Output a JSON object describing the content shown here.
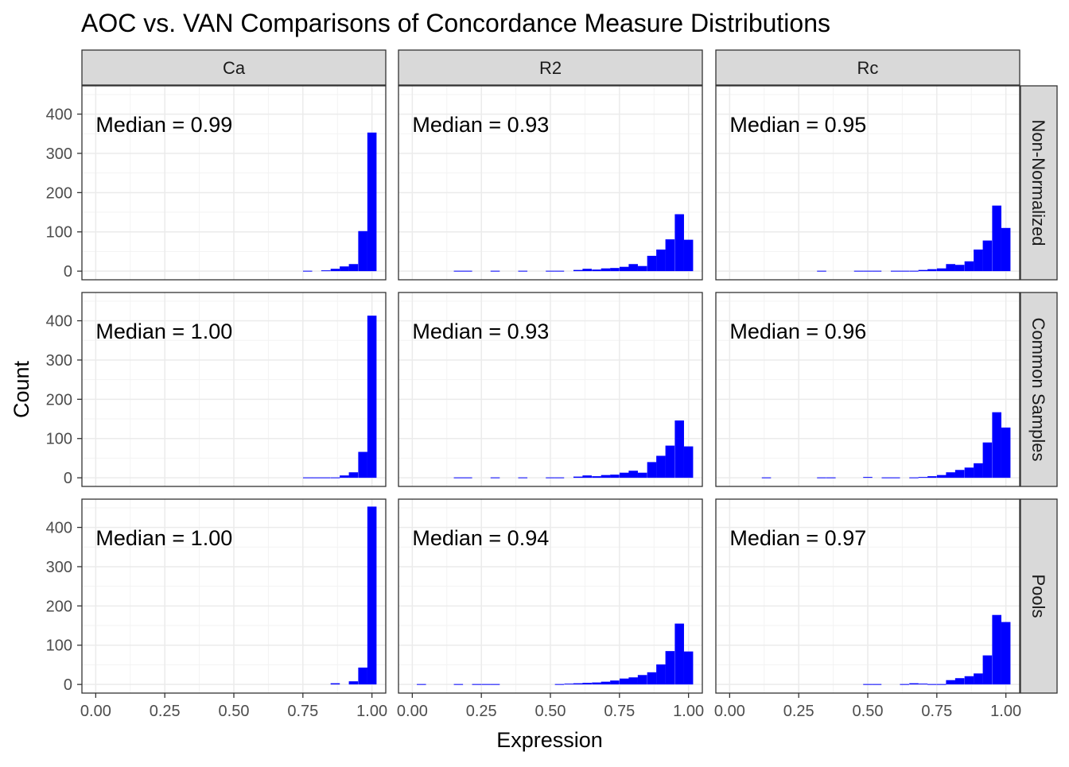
{
  "title": "AOC vs. VAN Comparisons of Concordance Measure Distributions",
  "xlabel": "Expression",
  "ylabel": "Count",
  "columns": [
    "Ca",
    "R2",
    "Rc"
  ],
  "rows": [
    "Non-Normalized",
    "Common Samples",
    "Pools"
  ],
  "x_ticks": [
    "0.00",
    "0.25",
    "0.50",
    "0.75",
    "1.00"
  ],
  "y_ticks": [
    "0",
    "100",
    "200",
    "300",
    "400"
  ],
  "colors": {
    "bars": "#0000ff",
    "strip_bg": "#d9d9d9",
    "grid": "#ebebeb"
  },
  "chart_data": {
    "type": "bar",
    "subtype": "faceted-histogram",
    "xlim": [
      -0.05,
      1.05
    ],
    "ylim": [
      -22,
      472
    ],
    "bin_width": 0.0333,
    "grid": true,
    "panels": [
      {
        "column": "Ca",
        "row": "Non-Normalized",
        "annotation": "Median = 0.99",
        "bars": [
          {
            "x": 0.767,
            "y": 1
          },
          {
            "x": 0.833,
            "y": 2
          },
          {
            "x": 0.867,
            "y": 6
          },
          {
            "x": 0.9,
            "y": 12
          },
          {
            "x": 0.933,
            "y": 18
          },
          {
            "x": 0.967,
            "y": 102
          },
          {
            "x": 1.0,
            "y": 353
          }
        ]
      },
      {
        "column": "R2",
        "row": "Non-Normalized",
        "annotation": "Median = 0.93",
        "bars": [
          {
            "x": 0.167,
            "y": 1
          },
          {
            "x": 0.2,
            "y": 1
          },
          {
            "x": 0.3,
            "y": 1
          },
          {
            "x": 0.4,
            "y": 1
          },
          {
            "x": 0.5,
            "y": 1
          },
          {
            "x": 0.533,
            "y": 1
          },
          {
            "x": 0.6,
            "y": 3
          },
          {
            "x": 0.633,
            "y": 6
          },
          {
            "x": 0.667,
            "y": 4
          },
          {
            "x": 0.7,
            "y": 7
          },
          {
            "x": 0.733,
            "y": 8
          },
          {
            "x": 0.767,
            "y": 11
          },
          {
            "x": 0.8,
            "y": 18
          },
          {
            "x": 0.833,
            "y": 13
          },
          {
            "x": 0.867,
            "y": 39
          },
          {
            "x": 0.9,
            "y": 55
          },
          {
            "x": 0.933,
            "y": 81
          },
          {
            "x": 0.967,
            "y": 145
          },
          {
            "x": 1.0,
            "y": 80
          }
        ]
      },
      {
        "column": "Rc",
        "row": "Non-Normalized",
        "annotation": "Median = 0.95",
        "bars": [
          {
            "x": 0.333,
            "y": 1
          },
          {
            "x": 0.467,
            "y": 1
          },
          {
            "x": 0.5,
            "y": 1
          },
          {
            "x": 0.533,
            "y": 1
          },
          {
            "x": 0.6,
            "y": 1
          },
          {
            "x": 0.633,
            "y": 1
          },
          {
            "x": 0.667,
            "y": 1
          },
          {
            "x": 0.7,
            "y": 3
          },
          {
            "x": 0.733,
            "y": 5
          },
          {
            "x": 0.767,
            "y": 7
          },
          {
            "x": 0.8,
            "y": 18
          },
          {
            "x": 0.833,
            "y": 16
          },
          {
            "x": 0.867,
            "y": 25
          },
          {
            "x": 0.9,
            "y": 55
          },
          {
            "x": 0.933,
            "y": 78
          },
          {
            "x": 0.967,
            "y": 167
          },
          {
            "x": 1.0,
            "y": 110
          }
        ]
      },
      {
        "column": "Ca",
        "row": "Common Samples",
        "annotation": "Median = 1.00",
        "bars": [
          {
            "x": 0.767,
            "y": 1
          },
          {
            "x": 0.8,
            "y": 1
          },
          {
            "x": 0.833,
            "y": 1
          },
          {
            "x": 0.867,
            "y": 1
          },
          {
            "x": 0.9,
            "y": 6
          },
          {
            "x": 0.933,
            "y": 14
          },
          {
            "x": 0.967,
            "y": 66
          },
          {
            "x": 1.0,
            "y": 413
          }
        ]
      },
      {
        "column": "R2",
        "row": "Common Samples",
        "annotation": "Median = 0.93",
        "bars": [
          {
            "x": 0.167,
            "y": 1
          },
          {
            "x": 0.2,
            "y": 1
          },
          {
            "x": 0.3,
            "y": 1
          },
          {
            "x": 0.4,
            "y": 1
          },
          {
            "x": 0.5,
            "y": 1
          },
          {
            "x": 0.533,
            "y": 1
          },
          {
            "x": 0.6,
            "y": 3
          },
          {
            "x": 0.633,
            "y": 6
          },
          {
            "x": 0.667,
            "y": 4
          },
          {
            "x": 0.7,
            "y": 7
          },
          {
            "x": 0.733,
            "y": 8
          },
          {
            "x": 0.767,
            "y": 13
          },
          {
            "x": 0.8,
            "y": 18
          },
          {
            "x": 0.833,
            "y": 13
          },
          {
            "x": 0.867,
            "y": 40
          },
          {
            "x": 0.9,
            "y": 56
          },
          {
            "x": 0.933,
            "y": 82
          },
          {
            "x": 0.967,
            "y": 146
          },
          {
            "x": 1.0,
            "y": 80
          }
        ]
      },
      {
        "column": "Rc",
        "row": "Common Samples",
        "annotation": "Median = 0.96",
        "bars": [
          {
            "x": 0.133,
            "y": 1
          },
          {
            "x": 0.333,
            "y": 1
          },
          {
            "x": 0.367,
            "y": 1
          },
          {
            "x": 0.5,
            "y": 2
          },
          {
            "x": 0.567,
            "y": 1
          },
          {
            "x": 0.6,
            "y": 1
          },
          {
            "x": 0.667,
            "y": 1
          },
          {
            "x": 0.7,
            "y": 2
          },
          {
            "x": 0.733,
            "y": 4
          },
          {
            "x": 0.767,
            "y": 7
          },
          {
            "x": 0.8,
            "y": 14
          },
          {
            "x": 0.833,
            "y": 20
          },
          {
            "x": 0.867,
            "y": 26
          },
          {
            "x": 0.9,
            "y": 37
          },
          {
            "x": 0.933,
            "y": 90
          },
          {
            "x": 0.967,
            "y": 167
          },
          {
            "x": 1.0,
            "y": 128
          }
        ]
      },
      {
        "column": "Ca",
        "row": "Pools",
        "annotation": "Median = 1.00",
        "bars": [
          {
            "x": 0.867,
            "y": 3
          },
          {
            "x": 0.933,
            "y": 8
          },
          {
            "x": 0.967,
            "y": 43
          },
          {
            "x": 1.0,
            "y": 453
          }
        ]
      },
      {
        "column": "R2",
        "row": "Pools",
        "annotation": "Median = 0.94",
        "bars": [
          {
            "x": 0.033,
            "y": 1
          },
          {
            "x": 0.167,
            "y": 1
          },
          {
            "x": 0.233,
            "y": 1
          },
          {
            "x": 0.267,
            "y": 1
          },
          {
            "x": 0.3,
            "y": 1
          },
          {
            "x": 0.533,
            "y": 1
          },
          {
            "x": 0.567,
            "y": 2
          },
          {
            "x": 0.6,
            "y": 3
          },
          {
            "x": 0.633,
            "y": 4
          },
          {
            "x": 0.667,
            "y": 5
          },
          {
            "x": 0.7,
            "y": 7
          },
          {
            "x": 0.733,
            "y": 10
          },
          {
            "x": 0.767,
            "y": 15
          },
          {
            "x": 0.8,
            "y": 18
          },
          {
            "x": 0.833,
            "y": 24
          },
          {
            "x": 0.867,
            "y": 31
          },
          {
            "x": 0.9,
            "y": 51
          },
          {
            "x": 0.933,
            "y": 85
          },
          {
            "x": 0.967,
            "y": 155
          },
          {
            "x": 1.0,
            "y": 84
          }
        ]
      },
      {
        "column": "Rc",
        "row": "Pools",
        "annotation": "Median = 0.97",
        "bars": [
          {
            "x": 0.5,
            "y": 1
          },
          {
            "x": 0.533,
            "y": 1
          },
          {
            "x": 0.633,
            "y": 1
          },
          {
            "x": 0.667,
            "y": 3
          },
          {
            "x": 0.7,
            "y": 2
          },
          {
            "x": 0.733,
            "y": 1
          },
          {
            "x": 0.767,
            "y": 1
          },
          {
            "x": 0.8,
            "y": 11
          },
          {
            "x": 0.833,
            "y": 16
          },
          {
            "x": 0.867,
            "y": 21
          },
          {
            "x": 0.9,
            "y": 28
          },
          {
            "x": 0.933,
            "y": 74
          },
          {
            "x": 0.967,
            "y": 177
          },
          {
            "x": 1.0,
            "y": 159
          }
        ]
      }
    ]
  }
}
